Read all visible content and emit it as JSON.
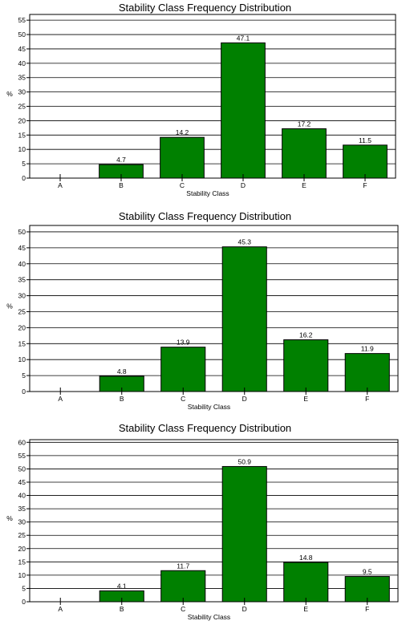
{
  "chart_data": [
    {
      "type": "bar",
      "title": "Stability Class Frequency Distribution",
      "xlabel": "Stability Class",
      "ylabel": "%",
      "categories": [
        "A",
        "B",
        "C",
        "D",
        "E",
        "F"
      ],
      "values": [
        0,
        4.7,
        14.2,
        47.1,
        17.2,
        11.5
      ],
      "value_labels": [
        "",
        "4.7",
        "14.2",
        "47.1",
        "17.2",
        "11.5"
      ],
      "ylim": [
        0,
        57
      ],
      "yticks": [
        0,
        5,
        10,
        15,
        20,
        25,
        30,
        35,
        40,
        45,
        50,
        55
      ],
      "grid": true,
      "bar_color": "#008000",
      "legend": "none"
    },
    {
      "type": "bar",
      "title": "Stability Class Frequency Distribution",
      "xlabel": "Stability Class",
      "ylabel": "%",
      "categories": [
        "A",
        "B",
        "C",
        "D",
        "E",
        "F"
      ],
      "values": [
        0,
        4.8,
        13.9,
        45.3,
        16.2,
        11.9
      ],
      "value_labels": [
        "",
        "4.8",
        "13.9",
        "45.3",
        "16.2",
        "11.9"
      ],
      "ylim": [
        0,
        52
      ],
      "yticks": [
        0,
        5,
        10,
        15,
        20,
        25,
        30,
        35,
        40,
        45,
        50
      ],
      "grid": true,
      "bar_color": "#008000",
      "legend": "none"
    },
    {
      "type": "bar",
      "title": "Stability Class Frequency Distribution",
      "xlabel": "Stability Class",
      "ylabel": "%",
      "categories": [
        "A",
        "B",
        "C",
        "D",
        "E",
        "F"
      ],
      "values": [
        0,
        4.1,
        11.7,
        50.9,
        14.8,
        9.5
      ],
      "value_labels": [
        "",
        "4.1",
        "11.7",
        "50.9",
        "14.8",
        "9.5"
      ],
      "ylim": [
        0,
        61
      ],
      "yticks": [
        0,
        5,
        10,
        15,
        20,
        25,
        30,
        35,
        40,
        45,
        50,
        55,
        60
      ],
      "grid": true,
      "bar_color": "#008000",
      "legend": "none"
    }
  ]
}
